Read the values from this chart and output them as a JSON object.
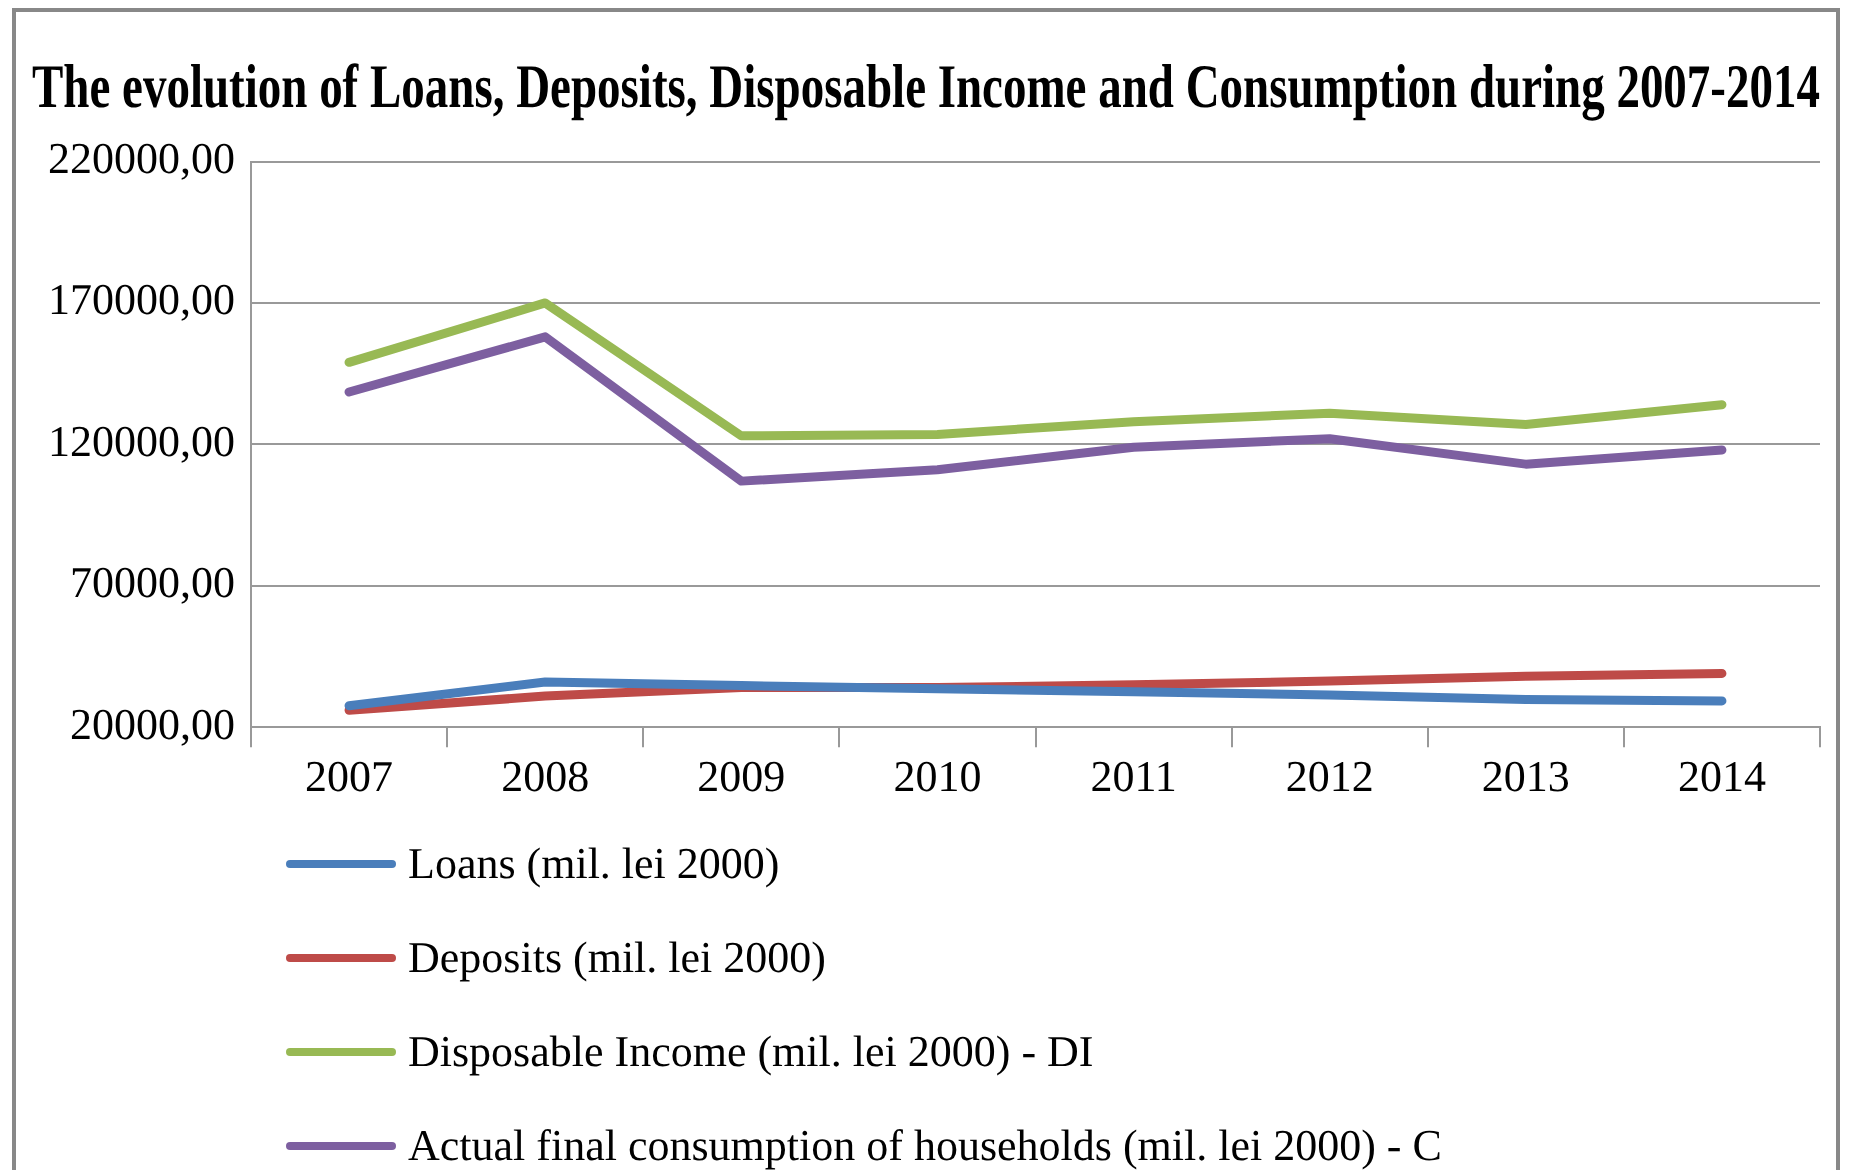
{
  "chart_data": {
    "type": "line",
    "title": "The evolution of Loans, Deposits, Disposable Income and Consumption during 2007-2014",
    "categories": [
      "2007",
      "2008",
      "2009",
      "2010",
      "2011",
      "2012",
      "2013",
      "2014"
    ],
    "series": [
      {
        "name": "Loans (mil. lei 2000)",
        "color": "#4a7ebb",
        "values": [
          27600,
          36000,
          34700,
          33600,
          32500,
          31400,
          29800,
          29300
        ]
      },
      {
        "name": "Deposits (mil. lei 2000)",
        "color": "#be4b48",
        "values": [
          26000,
          31000,
          34000,
          34000,
          35000,
          36300,
          38000,
          39000
        ]
      },
      {
        "name": "Disposable Income (mil. lei 2000) - DI",
        "color": "#98b954",
        "values": [
          149000,
          170000,
          123000,
          123500,
          128000,
          131000,
          127000,
          134000
        ]
      },
      {
        "name": "Actual final consumption of households (mil. lei 2000) - C",
        "color": "#7d5fa0",
        "values": [
          138500,
          158000,
          107000,
          111000,
          119000,
          122000,
          113000,
          118000
        ]
      }
    ],
    "ylim": [
      20000,
      220000
    ],
    "yticks": [
      {
        "value": 20000,
        "label": "20000,00"
      },
      {
        "value": 70000,
        "label": "70000,00"
      },
      {
        "value": 120000,
        "label": "120000,00"
      },
      {
        "value": 170000,
        "label": "170000,00"
      },
      {
        "value": 220000,
        "label": "220000,00"
      }
    ],
    "grid": "y",
    "legend": "bottom",
    "marker": "none",
    "line_style": "solid"
  }
}
